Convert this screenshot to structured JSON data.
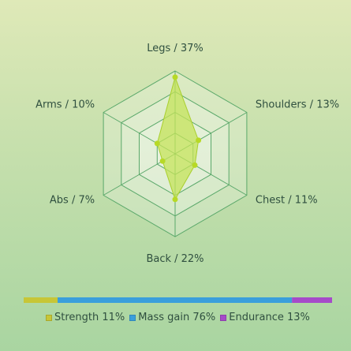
{
  "chart_data": {
    "type": "radar",
    "axes": [
      {
        "name": "Legs",
        "percent": 37,
        "label": "Legs / 37%"
      },
      {
        "name": "Shoulders",
        "percent": 13,
        "label": "Shoulders / 13%"
      },
      {
        "name": "Chest",
        "percent": 11,
        "label": "Chest / 11%"
      },
      {
        "name": "Back",
        "percent": 22,
        "label": "Back / 22%"
      },
      {
        "name": "Abs",
        "percent": 7,
        "label": "Abs / 7%"
      },
      {
        "name": "Arms",
        "percent": 10,
        "label": "Arms / 10%"
      }
    ],
    "rlim": [
      0,
      40
    ],
    "grid_levels": 4,
    "colors": {
      "area_fill": "#c4e35a",
      "area_stroke": "#a9cf2e",
      "point": "#b7d926",
      "grid_stroke": "#5aa86a",
      "grid_fill": "#ffffff"
    }
  },
  "stacked_bar": {
    "segments": [
      {
        "name": "Strength",
        "percent": 11,
        "label": "Strength 11%",
        "color": "#c7c637"
      },
      {
        "name": "Mass gain",
        "percent": 76,
        "label": "Mass gain 76%",
        "color": "#3a9fdb"
      },
      {
        "name": "Endurance",
        "percent": 13,
        "label": "Endurance 13%",
        "color": "#a64bc9"
      }
    ]
  }
}
